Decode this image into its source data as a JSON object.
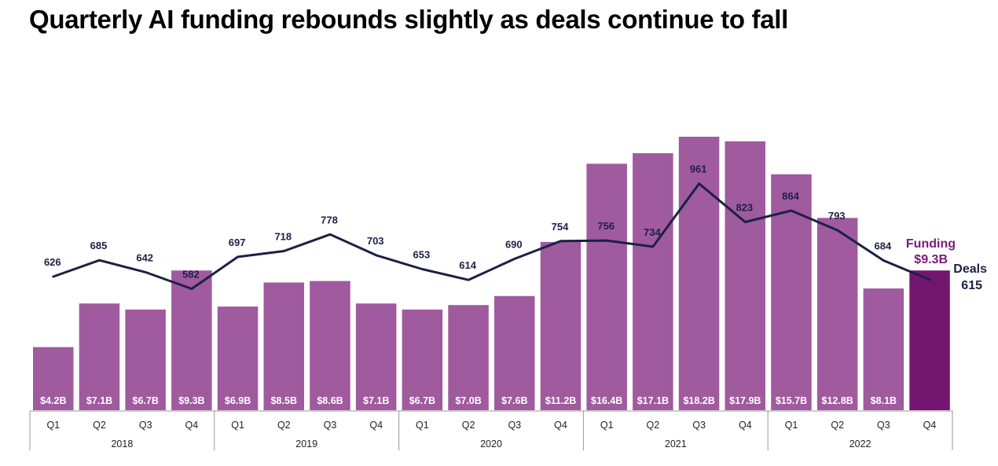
{
  "title": "Quarterly AI funding rebounds slightly as deals continue to fall",
  "annotations": {
    "funding_label": "Funding",
    "funding_value": "$9.3B",
    "deals_label": "Deals",
    "deals_value": "615"
  },
  "colors": {
    "bar": "#a05a9e",
    "bar_highlight": "#741670",
    "line": "#1c2145",
    "funding_text": "#7a1a78"
  },
  "chart_data": {
    "type": "bar",
    "title": "Quarterly AI funding rebounds slightly as deals continue to fall",
    "xlabel": "",
    "ylabel": "",
    "years": [
      "2018",
      "2019",
      "2020",
      "2021",
      "2022"
    ],
    "quarters": [
      "Q1",
      "Q2",
      "Q3",
      "Q4",
      "Q1",
      "Q2",
      "Q3",
      "Q4",
      "Q1",
      "Q2",
      "Q3",
      "Q4",
      "Q1",
      "Q2",
      "Q3",
      "Q4",
      "Q1",
      "Q2",
      "Q3",
      "Q4"
    ],
    "series": [
      {
        "name": "Funding",
        "type": "bar",
        "values": [
          4.2,
          7.1,
          6.7,
          9.3,
          6.9,
          8.5,
          8.6,
          7.1,
          6.7,
          7.0,
          7.6,
          11.2,
          16.4,
          17.1,
          18.2,
          17.9,
          15.7,
          12.8,
          8.1,
          9.3
        ],
        "labels": [
          "$4.2B",
          "$7.1B",
          "$6.7B",
          "$9.3B",
          "$6.9B",
          "$8.5B",
          "$8.6B",
          "$7.1B",
          "$6.7B",
          "$7.0B",
          "$7.6B",
          "$11.2B",
          "$16.4B",
          "$17.1B",
          "$18.2B",
          "$17.9B",
          "$15.7B",
          "$12.8B",
          "$8.1B",
          ""
        ]
      },
      {
        "name": "Deals",
        "type": "line",
        "values": [
          626,
          685,
          642,
          582,
          697,
          718,
          778,
          703,
          653,
          614,
          690,
          754,
          756,
          734,
          961,
          823,
          864,
          793,
          684,
          615
        ],
        "labels": [
          "626",
          "685",
          "642",
          "582",
          "697",
          "718",
          "778",
          "703",
          "653",
          "614",
          "690",
          "754",
          "756",
          "734",
          "961",
          "823",
          "864",
          "793",
          "684",
          ""
        ]
      }
    ],
    "grid": false,
    "legend": "none"
  }
}
